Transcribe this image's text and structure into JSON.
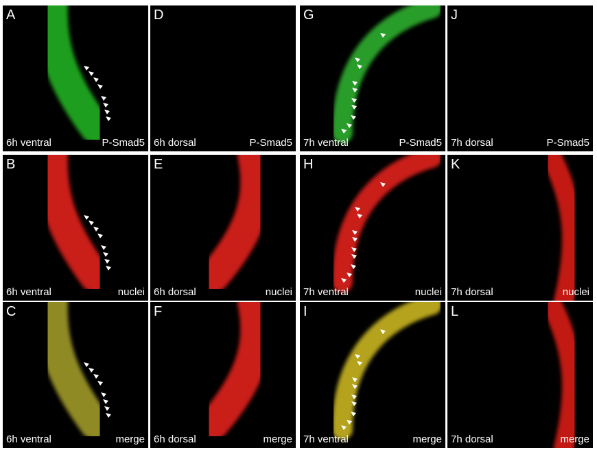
{
  "panels": [
    {
      "letter": "A",
      "stage": "6h ventral",
      "stain": "P-Smad5"
    },
    {
      "letter": "D",
      "stage": "6h dorsal",
      "stain": "P-Smad5"
    },
    {
      "letter": "G",
      "stage": "7h ventral",
      "stain": "P-Smad5"
    },
    {
      "letter": "J",
      "stage": "7h dorsal",
      "stain": "P-Smad5"
    },
    {
      "letter": "B",
      "stage": "6h ventral",
      "stain": "nuclei"
    },
    {
      "letter": "E",
      "stage": "6h dorsal",
      "stain": "nuclei"
    },
    {
      "letter": "H",
      "stage": "7h ventral",
      "stain": "nuclei"
    },
    {
      "letter": "K",
      "stage": "7h dorsal",
      "stain": "nuclei"
    },
    {
      "letter": "C",
      "stage": "6h ventral",
      "stain": "merge"
    },
    {
      "letter": "F",
      "stage": "6h dorsal",
      "stain": "merge"
    },
    {
      "letter": "I",
      "stage": "7h ventral",
      "stain": "merge"
    },
    {
      "letter": "L",
      "stage": "7h dorsal",
      "stain": "merge"
    }
  ]
}
